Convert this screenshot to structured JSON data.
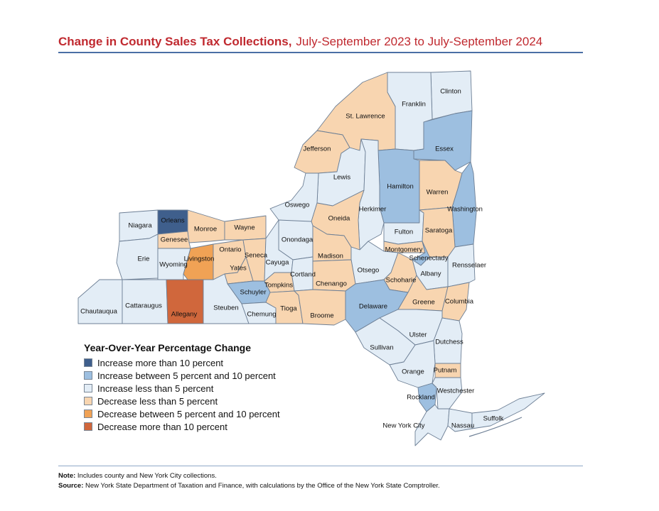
{
  "title": {
    "main": "Change in County Sales Tax Collections,",
    "sub": "July-September 2023 to July-September 2024"
  },
  "legend": {
    "title": "Year-Over-Year Percentage Change",
    "items": [
      {
        "label": "Increase more than 10 percent",
        "color": "#3f5f8c"
      },
      {
        "label": "Increase between 5 percent and 10 percent",
        "color": "#9dbfe0"
      },
      {
        "label": "Increase less than 5 percent",
        "color": "#e3edf6"
      },
      {
        "label": "Decrease less than 5 percent",
        "color": "#f8d5b0"
      },
      {
        "label": "Decrease between 5 percent and 10 percent",
        "color": "#f0a255"
      },
      {
        "label": "Decrease more than 10 percent",
        "color": "#d0673c"
      }
    ]
  },
  "counties": {
    "Clinton": "Increase less than 5 percent",
    "Franklin": "Increase less than 5 percent",
    "St. Lawrence": "Decrease less than 5 percent",
    "Essex": "Increase between 5 percent and 10 percent",
    "Jefferson": "Decrease less than 5 percent",
    "Lewis": "Increase less than 5 percent",
    "Hamilton": "Increase between 5 percent and 10 percent",
    "Warren": "Decrease less than 5 percent",
    "Washington": "Increase between 5 percent and 10 percent",
    "Oswego": "Increase less than 5 percent",
    "Herkimer": "Increase less than 5 percent",
    "Oneida": "Decrease less than 5 percent",
    "Fulton": "Increase less than 5 percent",
    "Saratoga": "Decrease less than 5 percent",
    "Niagara": "Increase less than 5 percent",
    "Orleans": "Increase more than 10 percent",
    "Monroe": "Decrease less than 5 percent",
    "Wayne": "Decrease less than 5 percent",
    "Genesee": "Decrease less than 5 percent",
    "Livingston": "Decrease between 5 percent and 10 percent",
    "Ontario": "Decrease less than 5 percent",
    "Seneca": "Decrease less than 5 percent",
    "Onondaga": "Increase less than 5 percent",
    "Madison": "Decrease less than 5 percent",
    "Montgomery": "Decrease less than 5 percent",
    "Schenectady": "Increase between 5 percent and 10 percent",
    "Erie": "Increase less than 5 percent",
    "Wyoming": "Increase less than 5 percent",
    "Yates": "Decrease less than 5 percent",
    "Cayuga": "Increase less than 5 percent",
    "Cortland": "Increase less than 5 percent",
    "Otsego": "Increase less than 5 percent",
    "Albany": "Increase less than 5 percent",
    "Rensselaer": "Increase less than 5 percent",
    "Schoharie": "Decrease less than 5 percent",
    "Chenango": "Decrease less than 5 percent",
    "Tompkins": "Decrease less than 5 percent",
    "Schuyler": "Increase between 5 percent and 10 percent",
    "Chautauqua": "Increase less than 5 percent",
    "Cattaraugus": "Increase less than 5 percent",
    "Allegany": "Decrease more than 10 percent",
    "Steuben": "Increase less than 5 percent",
    "Chemung": "Increase less than 5 percent",
    "Tioga": "Decrease less than 5 percent",
    "Broome": "Decrease less than 5 percent",
    "Delaware": "Increase between 5 percent and 10 percent",
    "Greene": "Decrease less than 5 percent",
    "Columbia": "Decrease less than 5 percent",
    "Ulster": "Increase less than 5 percent",
    "Sullivan": "Increase less than 5 percent",
    "Dutchess": "Increase less than 5 percent",
    "Orange": "Increase less than 5 percent",
    "Putnam": "Decrease less than 5 percent",
    "Rockland": "Increase between 5 percent and 10 percent",
    "Westchester": "Increase less than 5 percent",
    "New York City": "Increase less than 5 percent",
    "Nassau": "Increase less than 5 percent",
    "Suffolk": "Increase less than 5 percent"
  },
  "notes": {
    "note_label": "Note:",
    "note_text": "Includes county and New York City collections.",
    "source_label": "Source:",
    "source_text": "New York State Department of Taxation and Finance, with calculations by the Office of the New York State Comptroller."
  }
}
